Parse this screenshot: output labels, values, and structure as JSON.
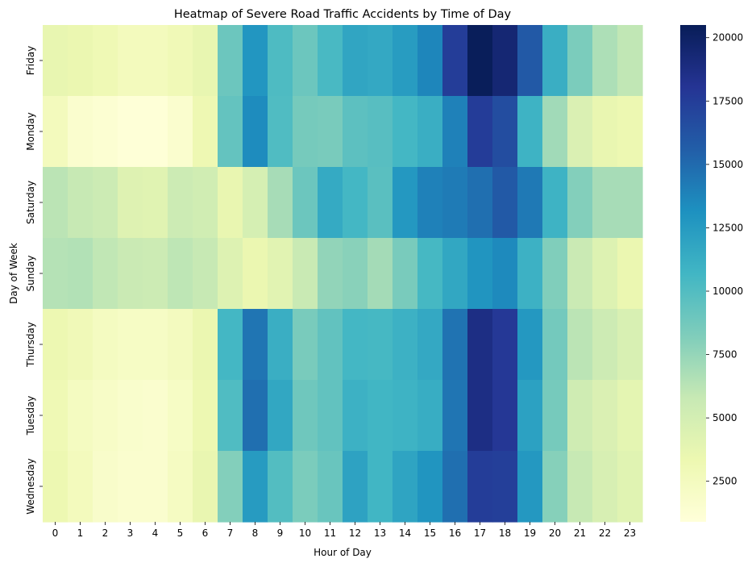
{
  "chart_data": {
    "type": "heatmap",
    "title": "Heatmap of Severe Road Traffic Accidents by Time of Day",
    "xlabel": "Hour of Day",
    "ylabel": "Day of Week",
    "x": [
      "0",
      "1",
      "2",
      "3",
      "4",
      "5",
      "6",
      "7",
      "8",
      "9",
      "10",
      "11",
      "12",
      "13",
      "14",
      "15",
      "16",
      "17",
      "18",
      "19",
      "20",
      "21",
      "22",
      "23"
    ],
    "y": [
      "Friday",
      "Monday",
      "Saturday",
      "Sunday",
      "Thursday",
      "Tuesday",
      "Wednesday"
    ],
    "values": [
      [
        3700,
        3500,
        3100,
        2600,
        2600,
        3000,
        3700,
        9000,
        12800,
        10200,
        9000,
        10400,
        11800,
        11600,
        12400,
        13700,
        17500,
        20400,
        19400,
        15900,
        11200,
        8400,
        6700,
        6000
      ],
      [
        2600,
        1600,
        1300,
        1000,
        1000,
        1600,
        3200,
        9300,
        13400,
        10100,
        8600,
        8500,
        9600,
        9800,
        10600,
        11200,
        13900,
        17600,
        16600,
        10900,
        7100,
        4600,
        3600,
        3300
      ],
      [
        6200,
        5800,
        5500,
        4300,
        4200,
        5500,
        5200,
        3600,
        4900,
        6900,
        9000,
        11500,
        10600,
        9700,
        12700,
        13900,
        14200,
        14800,
        15900,
        14300,
        10900,
        8100,
        6900,
        6900
      ],
      [
        6400,
        6500,
        6000,
        5600,
        5500,
        6100,
        5800,
        4400,
        3500,
        4100,
        5700,
        7600,
        7900,
        7000,
        8500,
        10500,
        11700,
        12900,
        13500,
        11000,
        8200,
        5600,
        4400,
        3500
      ],
      [
        3300,
        2900,
        2400,
        2100,
        2100,
        2500,
        3500,
        10600,
        14500,
        11200,
        8500,
        9400,
        10600,
        10500,
        11000,
        11600,
        14600,
        18700,
        17800,
        12700,
        8700,
        6200,
        5400,
        4700
      ],
      [
        3100,
        2400,
        2000,
        1700,
        1600,
        2100,
        3300,
        10100,
        14800,
        11700,
        8900,
        9400,
        11000,
        10700,
        10900,
        11300,
        14500,
        18700,
        17900,
        12100,
        8600,
        5300,
        4600,
        3900
      ],
      [
        3300,
        2600,
        1800,
        1600,
        1600,
        2300,
        3600,
        8100,
        12500,
        10000,
        8400,
        9100,
        12000,
        10700,
        11900,
        12900,
        14800,
        17500,
        17400,
        12700,
        8000,
        5800,
        4800,
        4200
      ]
    ],
    "colorbar": {
      "min": 900,
      "max": 20500,
      "ticks": [
        "2500",
        "5000",
        "7500",
        "10000",
        "12500",
        "15000",
        "17500",
        "20000"
      ]
    },
    "colormap": "YlGnBu",
    "colors": [
      "#ffffd9",
      "#edf8b1",
      "#c7e9b4",
      "#7fcdbb",
      "#41b6c4",
      "#1d91c0",
      "#225ea8",
      "#253494",
      "#081d58"
    ],
    "grid": false,
    "legend": "colorbar-right"
  }
}
